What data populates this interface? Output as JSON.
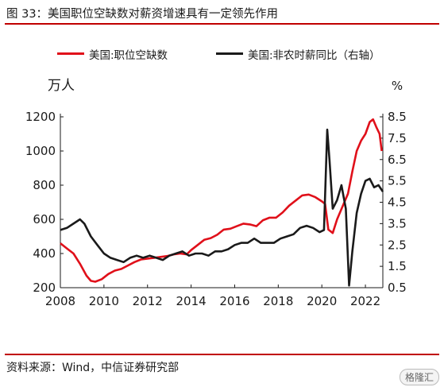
{
  "title": "图 33：美国职位空缺数对薪资增速具有一定领先作用",
  "source": "资料来源：Wind，中信证券研究部",
  "logo_text": "格隆汇",
  "chart_data": {
    "type": "line",
    "left_unit": "万人",
    "right_unit": "%",
    "x_ticks": [
      "2008",
      "2010",
      "2012",
      "2014",
      "2016",
      "2018",
      "2020",
      "2022"
    ],
    "y_left_ticks": [
      "200",
      "400",
      "600",
      "800",
      "1000",
      "1200"
    ],
    "y_right_ticks": [
      "0.5",
      "1.5",
      "2.5",
      "3.5",
      "4.5",
      "5.5",
      "6.5",
      "7.5",
      "8.5"
    ],
    "y_left_range": [
      200,
      1200
    ],
    "y_right_range": [
      0.5,
      8.5
    ],
    "x_range": [
      2008.0,
      2022.8
    ],
    "series": [
      {
        "name": "美国:职位空缺数",
        "axis": "left",
        "color": "#e0101a",
        "points": [
          [
            2008.0,
            460
          ],
          [
            2008.3,
            430
          ],
          [
            2008.6,
            400
          ],
          [
            2008.9,
            340
          ],
          [
            2009.2,
            270
          ],
          [
            2009.4,
            240
          ],
          [
            2009.6,
            235
          ],
          [
            2009.9,
            250
          ],
          [
            2010.2,
            280
          ],
          [
            2010.5,
            300
          ],
          [
            2010.8,
            310
          ],
          [
            2011.1,
            330
          ],
          [
            2011.4,
            350
          ],
          [
            2011.7,
            365
          ],
          [
            2012.0,
            370
          ],
          [
            2012.3,
            375
          ],
          [
            2012.6,
            380
          ],
          [
            2012.9,
            385
          ],
          [
            2013.2,
            395
          ],
          [
            2013.5,
            400
          ],
          [
            2013.8,
            395
          ],
          [
            2014.0,
            420
          ],
          [
            2014.3,
            450
          ],
          [
            2014.6,
            480
          ],
          [
            2014.9,
            490
          ],
          [
            2015.2,
            510
          ],
          [
            2015.5,
            540
          ],
          [
            2015.8,
            545
          ],
          [
            2016.1,
            560
          ],
          [
            2016.4,
            575
          ],
          [
            2016.7,
            570
          ],
          [
            2017.0,
            560
          ],
          [
            2017.3,
            595
          ],
          [
            2017.6,
            610
          ],
          [
            2017.9,
            610
          ],
          [
            2018.2,
            640
          ],
          [
            2018.5,
            680
          ],
          [
            2018.8,
            710
          ],
          [
            2019.1,
            740
          ],
          [
            2019.4,
            745
          ],
          [
            2019.7,
            730
          ],
          [
            2020.0,
            705
          ],
          [
            2020.15,
            690
          ],
          [
            2020.3,
            540
          ],
          [
            2020.5,
            520
          ],
          [
            2020.7,
            600
          ],
          [
            2021.0,
            690
          ],
          [
            2021.2,
            750
          ],
          [
            2021.4,
            880
          ],
          [
            2021.6,
            1000
          ],
          [
            2021.8,
            1060
          ],
          [
            2022.0,
            1100
          ],
          [
            2022.2,
            1170
          ],
          [
            2022.35,
            1185
          ],
          [
            2022.5,
            1140
          ],
          [
            2022.65,
            1100
          ],
          [
            2022.75,
            1000
          ]
        ]
      },
      {
        "name": "美国:非农时薪同比（右轴）",
        "axis": "right",
        "color": "#1a1a1a",
        "points": [
          [
            2008.0,
            3.2
          ],
          [
            2008.3,
            3.3
          ],
          [
            2008.6,
            3.5
          ],
          [
            2008.9,
            3.7
          ],
          [
            2009.1,
            3.5
          ],
          [
            2009.4,
            2.9
          ],
          [
            2009.7,
            2.5
          ],
          [
            2010.0,
            2.1
          ],
          [
            2010.3,
            1.9
          ],
          [
            2010.6,
            1.8
          ],
          [
            2010.9,
            1.7
          ],
          [
            2011.2,
            1.9
          ],
          [
            2011.5,
            2.0
          ],
          [
            2011.8,
            1.9
          ],
          [
            2012.1,
            2.0
          ],
          [
            2012.4,
            1.9
          ],
          [
            2012.7,
            1.8
          ],
          [
            2013.0,
            2.0
          ],
          [
            2013.3,
            2.1
          ],
          [
            2013.6,
            2.2
          ],
          [
            2013.9,
            2.0
          ],
          [
            2014.2,
            2.1
          ],
          [
            2014.5,
            2.1
          ],
          [
            2014.8,
            2.0
          ],
          [
            2015.1,
            2.2
          ],
          [
            2015.4,
            2.2
          ],
          [
            2015.7,
            2.3
          ],
          [
            2016.0,
            2.5
          ],
          [
            2016.3,
            2.6
          ],
          [
            2016.6,
            2.6
          ],
          [
            2016.9,
            2.8
          ],
          [
            2017.2,
            2.6
          ],
          [
            2017.5,
            2.6
          ],
          [
            2017.8,
            2.6
          ],
          [
            2018.1,
            2.8
          ],
          [
            2018.4,
            2.9
          ],
          [
            2018.7,
            3.0
          ],
          [
            2019.0,
            3.3
          ],
          [
            2019.3,
            3.4
          ],
          [
            2019.6,
            3.3
          ],
          [
            2019.9,
            3.1
          ],
          [
            2020.1,
            3.2
          ],
          [
            2020.25,
            7.9
          ],
          [
            2020.35,
            6.5
          ],
          [
            2020.5,
            4.2
          ],
          [
            2020.7,
            4.6
          ],
          [
            2020.9,
            5.3
          ],
          [
            2021.1,
            4.2
          ],
          [
            2021.25,
            0.6
          ],
          [
            2021.4,
            2.2
          ],
          [
            2021.6,
            4.0
          ],
          [
            2021.8,
            4.9
          ],
          [
            2022.0,
            5.5
          ],
          [
            2022.2,
            5.6
          ],
          [
            2022.4,
            5.2
          ],
          [
            2022.6,
            5.3
          ],
          [
            2022.8,
            5.0
          ]
        ]
      }
    ]
  }
}
